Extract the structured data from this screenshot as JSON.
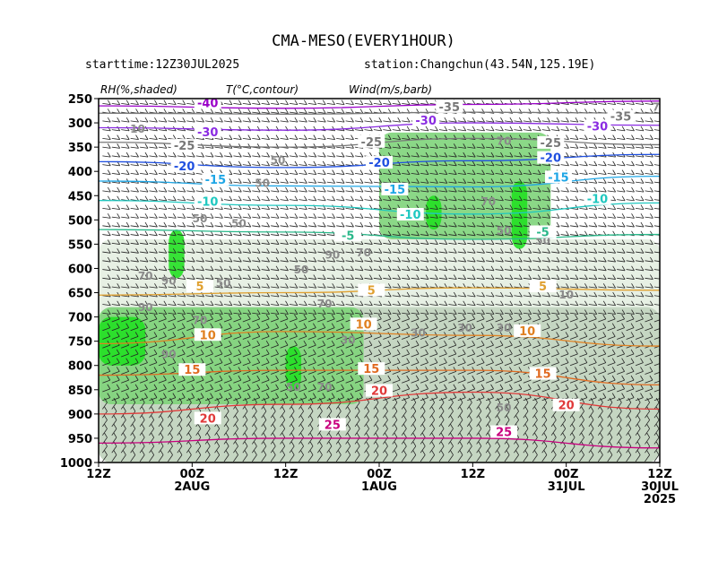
{
  "header": {
    "title": "CMA-MESO(EVERY1HOUR)",
    "starttime": "starttime:12Z30JUL2025",
    "station": "station:Changchun(43.54N,125.19E)"
  },
  "panel_labels": {
    "rh": "RH(%,shaded)",
    "temp": "T(°C,contour)",
    "wind": "Wind(m/s,barb)"
  },
  "colors": {
    "rh_50": "#e7f0e4",
    "rh_70": "#c5d6c2",
    "rh_80": "#b0bfae",
    "rh_90": "#7ed47a",
    "rh_95": "#22e022",
    "t_m40": "#9a00c8",
    "t_m30": "#8a2be2",
    "t_m20": "#2050e0",
    "t_m15": "#1ea6e6",
    "t_m10": "#1fc8c0",
    "t_m5": "#2ab88a",
    "t_0": "#ffffff",
    "t_5": "#e0a030",
    "t_10": "#e08020",
    "t_15": "#e06a20",
    "t_20": "#e03a3a",
    "t_25": "#c8007e"
  },
  "chart_data": {
    "type": "heatmap",
    "title": "CMA-MESO(EVERY1HOUR)",
    "xlabel": "",
    "ylabel": "",
    "x_axis_note": "time runs right-to-left from 12Z 30JUL 2025 to 12Z 2AUG",
    "x_ticks": [
      {
        "hour": 0,
        "top": "12Z",
        "bottom": ""
      },
      {
        "hour": 12,
        "top": "00Z",
        "bottom": "2AUG"
      },
      {
        "hour": 24,
        "top": "12Z",
        "bottom": ""
      },
      {
        "hour": 36,
        "top": "00Z",
        "bottom": "1AUG"
      },
      {
        "hour": 48,
        "top": "12Z",
        "bottom": ""
      },
      {
        "hour": 60,
        "top": "00Z",
        "bottom": "31JUL"
      },
      {
        "hour": 72,
        "top": "12Z",
        "bottom": "30JUL",
        "bottom2": "2025"
      }
    ],
    "xlim": [
      0,
      72
    ],
    "y_ticks": [
      250,
      300,
      350,
      400,
      450,
      500,
      550,
      600,
      650,
      700,
      750,
      800,
      850,
      900,
      950,
      1000
    ],
    "ylim": [
      1000,
      250
    ],
    "temperature_contours": [
      {
        "value": -40,
        "label": "-40",
        "levels": [
          [
            0,
            265
          ],
          [
            24,
            270
          ],
          [
            48,
            262
          ],
          [
            72,
            255
          ]
        ],
        "labels_at": [
          [
            14,
            262
          ]
        ]
      },
      {
        "value": -35,
        "label": "-35",
        "levels": [
          [
            0,
            280
          ],
          [
            24,
            282
          ],
          [
            48,
            278
          ],
          [
            72,
            280
          ]
        ],
        "labels_at": [
          [
            45,
            270
          ],
          [
            67,
            290
          ]
        ]
      },
      {
        "value": -30,
        "label": "-30",
        "levels": [
          [
            0,
            310
          ],
          [
            24,
            315
          ],
          [
            48,
            300
          ],
          [
            72,
            305
          ]
        ],
        "labels_at": [
          [
            14,
            322
          ],
          [
            42,
            298
          ],
          [
            64,
            310
          ]
        ]
      },
      {
        "value": -25,
        "label": "-25",
        "levels": [
          [
            0,
            340
          ],
          [
            24,
            350
          ],
          [
            48,
            332
          ],
          [
            72,
            345
          ]
        ],
        "labels_at": [
          [
            11,
            350
          ],
          [
            35,
            342
          ],
          [
            58,
            344
          ]
        ]
      },
      {
        "value": -20,
        "label": "-20",
        "levels": [
          [
            0,
            380
          ],
          [
            24,
            392
          ],
          [
            48,
            378
          ],
          [
            72,
            365
          ]
        ],
        "labels_at": [
          [
            11,
            392
          ],
          [
            36,
            385
          ],
          [
            58,
            375
          ]
        ]
      },
      {
        "value": -15,
        "label": "-15",
        "levels": [
          [
            0,
            420
          ],
          [
            24,
            430
          ],
          [
            48,
            432
          ],
          [
            72,
            410
          ]
        ],
        "labels_at": [
          [
            15,
            420
          ],
          [
            38,
            440
          ],
          [
            59,
            415
          ]
        ]
      },
      {
        "value": -10,
        "label": "-10",
        "levels": [
          [
            0,
            460
          ],
          [
            24,
            470
          ],
          [
            48,
            488
          ],
          [
            72,
            465
          ]
        ],
        "labels_at": [
          [
            14,
            465
          ],
          [
            40,
            492
          ],
          [
            64,
            460
          ]
        ]
      },
      {
        "value": -5,
        "label": "-5",
        "levels": [
          [
            0,
            520
          ],
          [
            24,
            525
          ],
          [
            48,
            540
          ],
          [
            72,
            530
          ]
        ],
        "labels_at": [
          [
            32,
            535
          ],
          [
            57,
            528
          ]
        ]
      },
      {
        "value": 5,
        "label": "5",
        "levels": [
          [
            0,
            655
          ],
          [
            24,
            650
          ],
          [
            48,
            640
          ],
          [
            72,
            645
          ]
        ],
        "labels_at": [
          [
            13,
            640
          ],
          [
            35,
            648
          ],
          [
            57,
            640
          ]
        ]
      },
      {
        "value": 10,
        "label": "10",
        "levels": [
          [
            0,
            755
          ],
          [
            24,
            730
          ],
          [
            48,
            738
          ],
          [
            72,
            760
          ]
        ],
        "labels_at": [
          [
            14,
            740
          ],
          [
            34,
            718
          ],
          [
            55,
            732
          ]
        ]
      },
      {
        "value": 15,
        "label": "15",
        "levels": [
          [
            0,
            820
          ],
          [
            24,
            810
          ],
          [
            48,
            810
          ],
          [
            72,
            840
          ]
        ],
        "labels_at": [
          [
            12,
            812
          ],
          [
            35,
            810
          ],
          [
            57,
            820
          ]
        ]
      },
      {
        "value": 20,
        "label": "20",
        "levels": [
          [
            0,
            900
          ],
          [
            24,
            880
          ],
          [
            48,
            855
          ],
          [
            72,
            890
          ]
        ],
        "labels_at": [
          [
            14,
            912
          ],
          [
            36,
            855
          ],
          [
            60,
            885
          ]
        ]
      },
      {
        "value": 25,
        "label": "25",
        "levels": [
          [
            0,
            960
          ],
          [
            24,
            950
          ],
          [
            48,
            950
          ],
          [
            72,
            970
          ]
        ],
        "labels_at": [
          [
            30,
            925
          ],
          [
            52,
            940
          ]
        ]
      }
    ],
    "rh_labels": [
      {
        "text": "70",
        "at": [
          72,
          275
        ]
      },
      {
        "text": "10",
        "at": [
          5,
          320
        ]
      },
      {
        "text": "70",
        "at": [
          52,
          345
        ]
      },
      {
        "text": "50",
        "at": [
          23,
          385
        ]
      },
      {
        "text": "50",
        "at": [
          21,
          432
        ]
      },
      {
        "text": "70",
        "at": [
          50,
          470
        ]
      },
      {
        "text": "50",
        "at": [
          13,
          505
        ]
      },
      {
        "text": "50",
        "at": [
          18,
          515
        ]
      },
      {
        "text": "50",
        "at": [
          52,
          530
        ]
      },
      {
        "text": "50",
        "at": [
          57,
          550
        ]
      },
      {
        "text": "70",
        "at": [
          34,
          575
        ]
      },
      {
        "text": "90",
        "at": [
          30,
          580
        ]
      },
      {
        "text": "70",
        "at": [
          6,
          623
        ]
      },
      {
        "text": "90",
        "at": [
          9,
          633
        ]
      },
      {
        "text": "50",
        "at": [
          16,
          638
        ]
      },
      {
        "text": "50",
        "at": [
          26,
          610
        ]
      },
      {
        "text": "10",
        "at": [
          60,
          662
        ]
      },
      {
        "text": "90",
        "at": [
          6,
          688
        ]
      },
      {
        "text": "70",
        "at": [
          29,
          680
        ]
      },
      {
        "text": "70",
        "at": [
          13,
          715
        ]
      },
      {
        "text": "30",
        "at": [
          32,
          755
        ]
      },
      {
        "text": "30",
        "at": [
          41,
          740
        ]
      },
      {
        "text": "30",
        "at": [
          47,
          730
        ]
      },
      {
        "text": "30",
        "at": [
          52,
          730
        ]
      },
      {
        "text": "90",
        "at": [
          9,
          785
        ]
      },
      {
        "text": "50",
        "at": [
          25,
          852
        ]
      },
      {
        "text": "70",
        "at": [
          29,
          852
        ]
      },
      {
        "text": "50",
        "at": [
          52,
          895
        ]
      }
    ],
    "rh_regions": [
      {
        "level": 95,
        "hour_range": [
          0,
          6
        ],
        "p_range": [
          700,
          800
        ]
      },
      {
        "level": 95,
        "hour_range": [
          9,
          11
        ],
        "p_range": [
          520,
          620
        ]
      },
      {
        "level": 95,
        "hour_range": [
          24,
          26
        ],
        "p_range": [
          760,
          850
        ]
      },
      {
        "level": 95,
        "hour_range": [
          42,
          44
        ],
        "p_range": [
          450,
          520
        ]
      },
      {
        "level": 95,
        "hour_range": [
          53,
          55
        ],
        "p_range": [
          420,
          560
        ]
      },
      {
        "level": 90,
        "hour_range": [
          0,
          34
        ],
        "p_range": [
          680,
          880
        ]
      },
      {
        "level": 90,
        "hour_range": [
          36,
          58
        ],
        "p_range": [
          320,
          540
        ]
      },
      {
        "level": 70,
        "hour_range": [
          0,
          72
        ],
        "p_range": [
          680,
          1000
        ]
      },
      {
        "level": 50,
        "hour_range": [
          0,
          72
        ],
        "p_range": [
          540,
          1000
        ]
      }
    ]
  }
}
